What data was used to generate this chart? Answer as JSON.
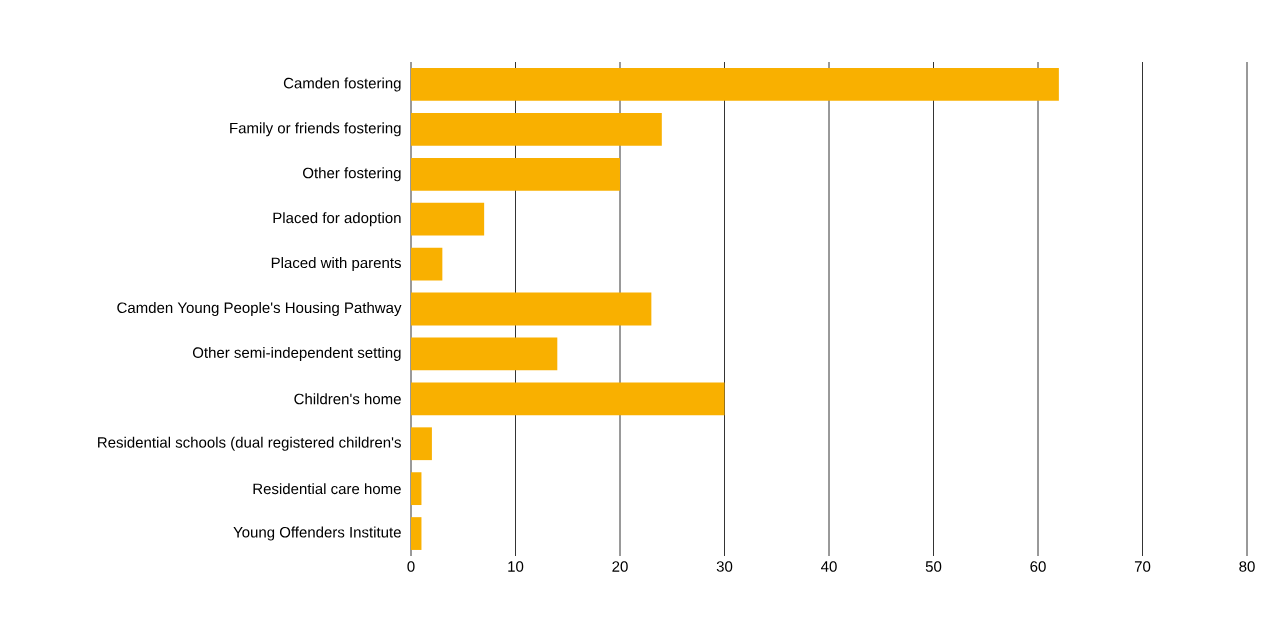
{
  "chart_data": {
    "type": "bar",
    "orientation": "horizontal",
    "categories": [
      "Camden fostering",
      "Family or friends fostering",
      "Other fostering",
      "Placed for adoption",
      "Placed with parents",
      "Camden Young People's Housing Pathway",
      "Other semi-independent setting",
      "Children's home",
      "Residential schools (dual registered children's",
      "Residential care home",
      "Young Offenders Institute"
    ],
    "values": [
      62,
      24,
      20,
      7,
      3,
      23,
      14,
      30,
      2,
      1,
      1
    ],
    "color": "#f9b000",
    "xlim": [
      0,
      80
    ],
    "xticks": [
      0,
      10,
      20,
      30,
      40,
      50,
      60,
      70,
      80
    ],
    "grid": "x"
  }
}
